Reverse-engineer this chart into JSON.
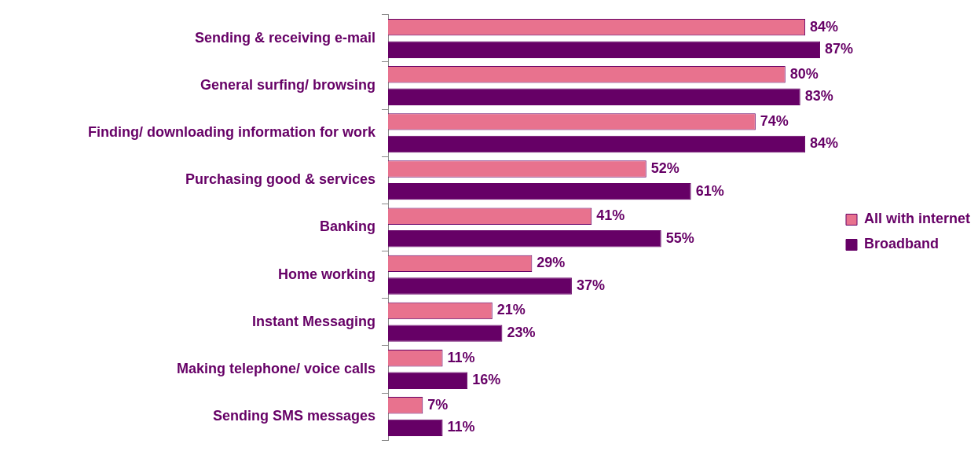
{
  "chart_data": {
    "type": "bar",
    "orientation": "horizontal",
    "categories": [
      "Sending & receiving e-mail",
      "General surfing/ browsing",
      "Finding/ downloading information for work",
      "Purchasing good & services",
      "Banking",
      "Home working",
      "Instant Messaging",
      "Making telephone/ voice calls",
      "Sending SMS messages"
    ],
    "series": [
      {
        "name": "All with internet",
        "color": "#e8728e",
        "values": [
          84,
          80,
          74,
          52,
          41,
          29,
          21,
          11,
          7
        ],
        "value_labels": [
          "84%",
          "80%",
          "74%",
          "52%",
          "41%",
          "29%",
          "21%",
          "11%",
          "7%"
        ]
      },
      {
        "name": "Broadband",
        "color": "#660066",
        "values": [
          87,
          83,
          84,
          61,
          55,
          37,
          23,
          16,
          11
        ],
        "value_labels": [
          "87%",
          "83%",
          "84%",
          "61%",
          "55%",
          "37%",
          "23%",
          "16%",
          "11%"
        ]
      }
    ],
    "legend": "right"
  }
}
